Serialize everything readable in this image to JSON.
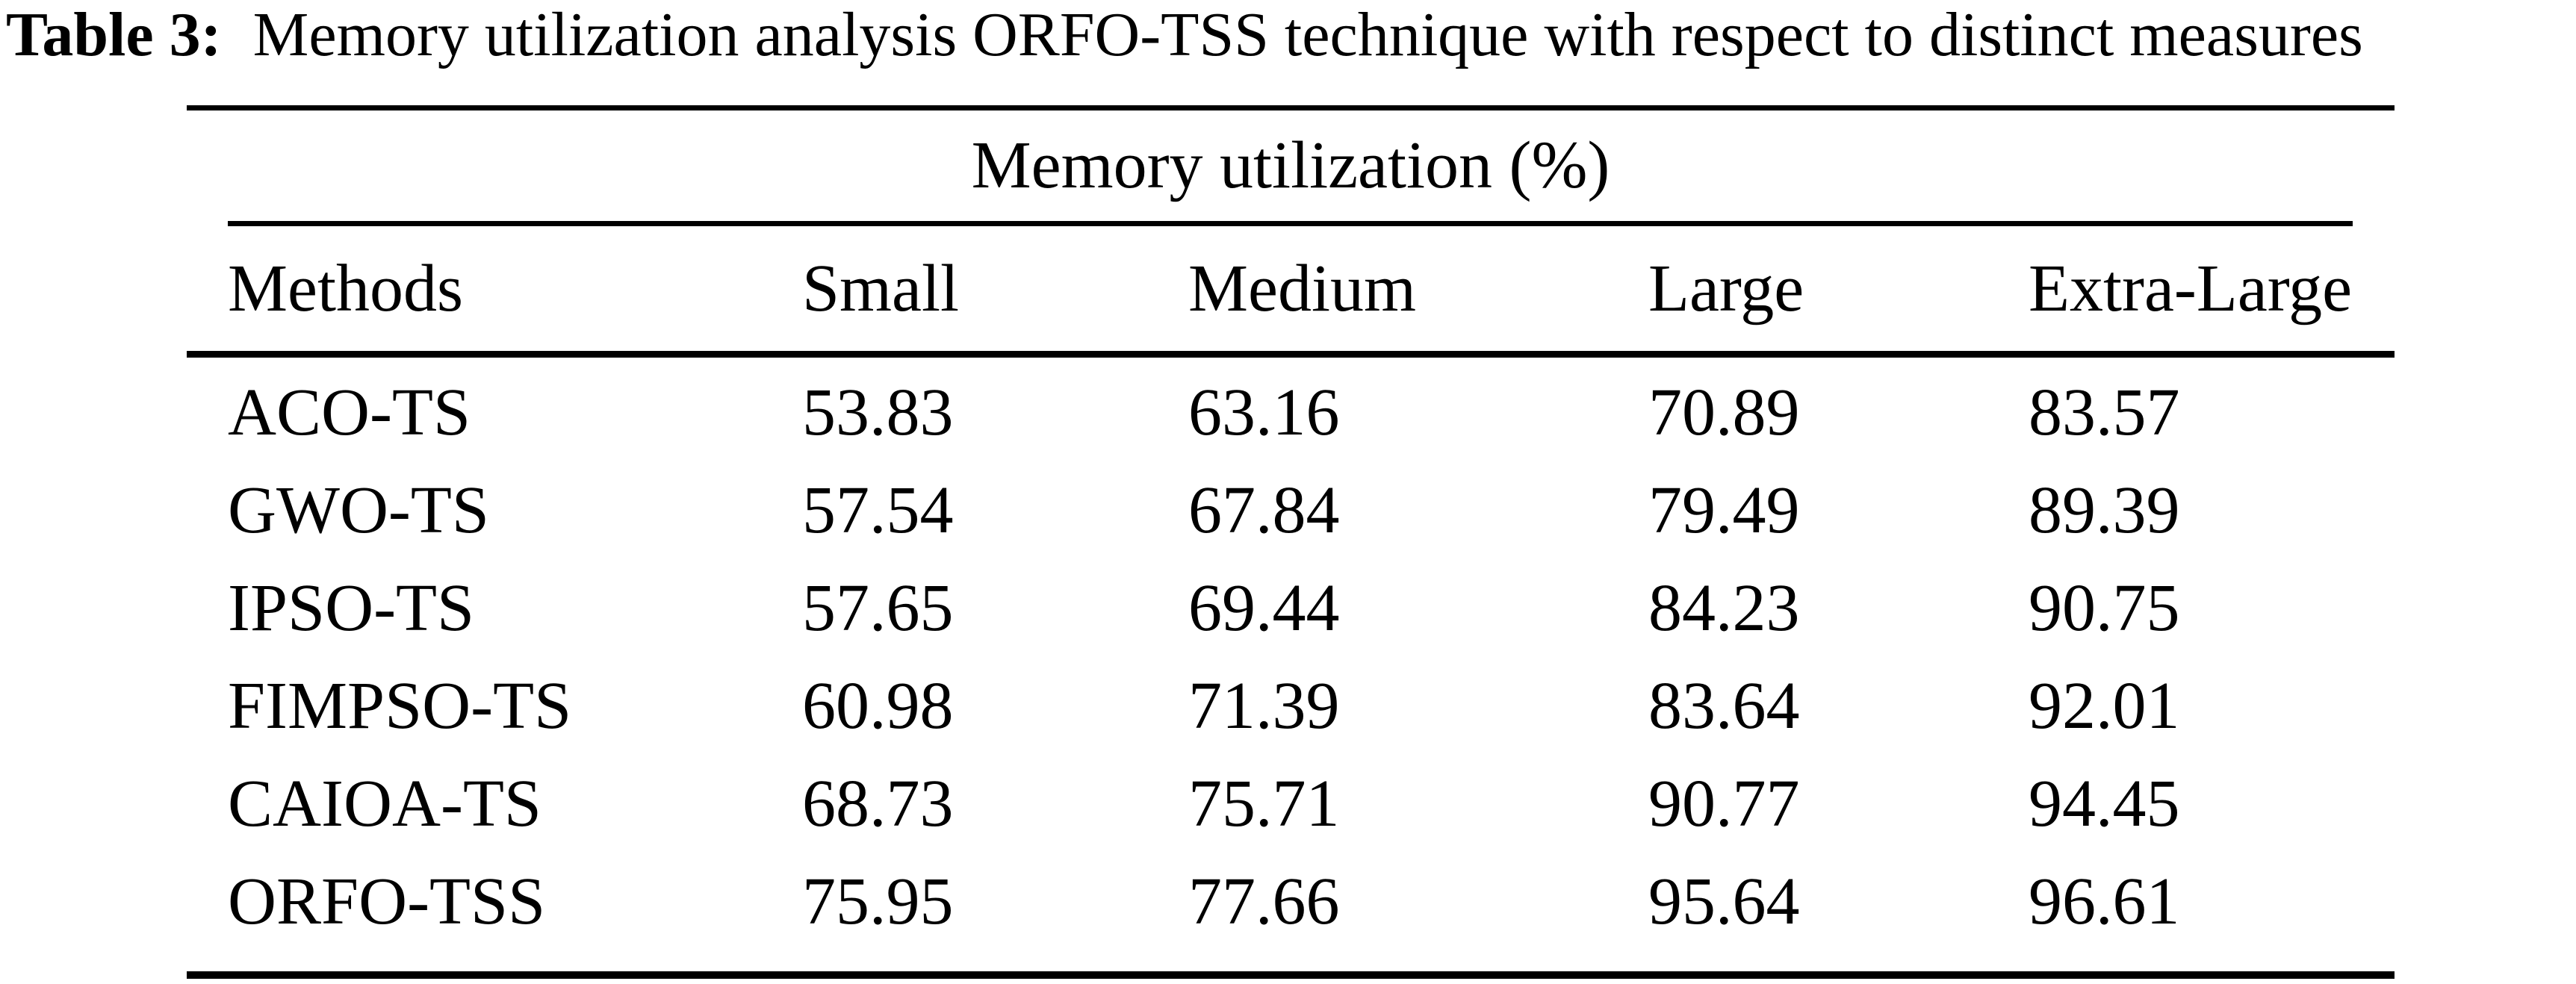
{
  "title": {
    "label": "Table 3:",
    "text": "Memory utilization analysis ORFO-TSS technique with respect to distinct measures"
  },
  "table": {
    "span_header": "Memory utilization (%)",
    "columns": [
      "Methods",
      "Small",
      "Medium",
      "Large",
      "Extra-Large"
    ],
    "rows": [
      [
        "ACO-TS",
        "53.83",
        "63.16",
        "70.89",
        "83.57"
      ],
      [
        "GWO-TS",
        "57.54",
        "67.84",
        "79.49",
        "89.39"
      ],
      [
        "IPSO-TS",
        "57.65",
        "69.44",
        "84.23",
        "90.75"
      ],
      [
        "FIMPSO-TS",
        "60.98",
        "71.39",
        "83.64",
        "92.01"
      ],
      [
        "CAIOA-TS",
        "68.73",
        "75.71",
        "90.77",
        "94.45"
      ],
      [
        "ORFO-TSS",
        "75.95",
        "77.66",
        "95.64",
        "96.61"
      ]
    ]
  }
}
